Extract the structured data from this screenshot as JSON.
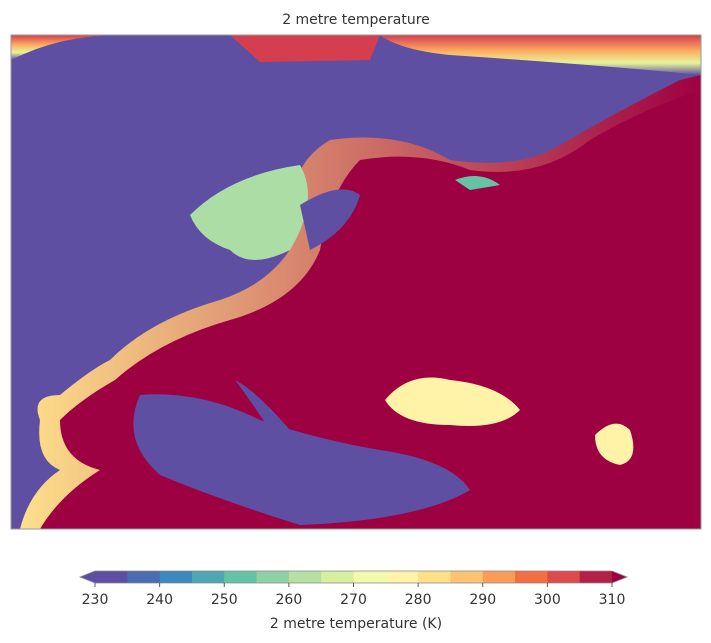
{
  "title": "2 metre temperature",
  "colorbar": {
    "label": "2 metre temperature (K)",
    "range": [
      230,
      310
    ],
    "ticks": [
      230,
      240,
      250,
      260,
      270,
      280,
      290,
      300,
      310
    ],
    "colors": [
      "#5e4fa2",
      "#4a6cb0",
      "#3d88bd",
      "#4fa6b0",
      "#66c2a5",
      "#8fd1a4",
      "#b5e0a2",
      "#d8ef9e",
      "#f1f9ab",
      "#fff3a8",
      "#fee08b",
      "#fdc373",
      "#fa9b57",
      "#f26f44",
      "#dc4a4c",
      "#b41f48"
    ],
    "under_color": "#5e4fa2",
    "over_color": "#9e0142"
  }
}
